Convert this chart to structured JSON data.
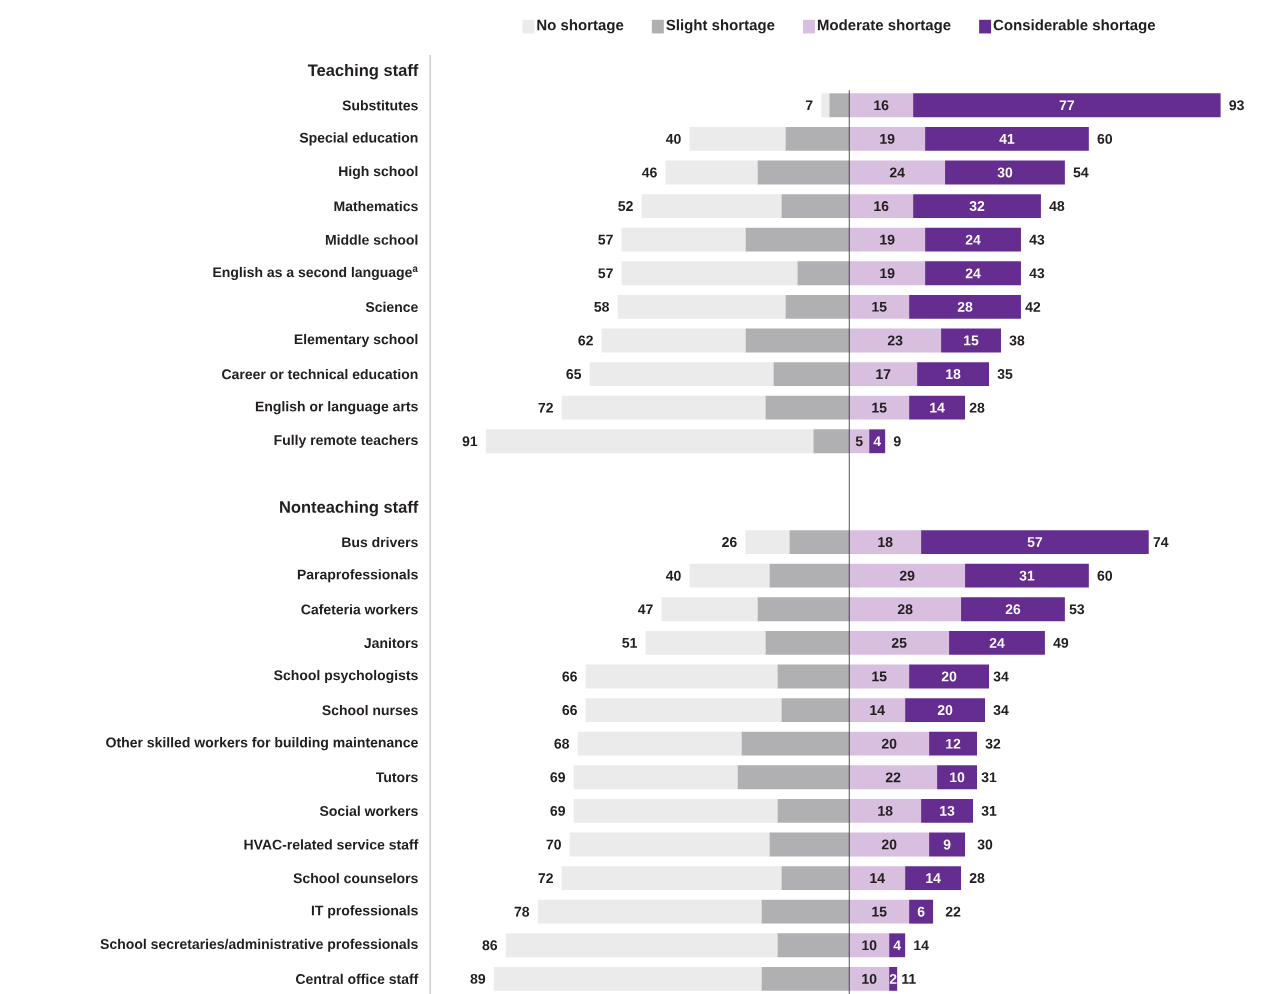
{
  "chart_data": {
    "type": "bar",
    "orientation": "horizontal",
    "stacked": true,
    "legend": "top",
    "tick_labels": "y",
    "categories": [
      "Teaching staff",
      "Substitutes",
      "Special education",
      "High school",
      "Mathematics",
      "Middle school",
      "English as a second language$^{a}$",
      "Science",
      "Elementary school",
      "Career or technical education",
      "English or language arts",
      "Fully remote teachers",
      null,
      "Nonteaching staff",
      "Bus drivers",
      "Paraprofessionals",
      "Cafeteria workers",
      "Janitors",
      "School psychologists",
      "School nurses",
      "Other skilled workers for building maintenance",
      "Tutors",
      "Social workers",
      "HVAC-related service staff",
      "School counselors",
      "IT professionals",
      "School secretaries/administrative professionals",
      "Central office staff"
    ],
    "series": [
      {
        "name": "Slight shortage",
        "color": "#b0b0b3",
        "values": [
          null,
          -5,
          -16,
          -23,
          -17,
          -26,
          -13,
          -16,
          -26,
          -19,
          -21,
          -9,
          null,
          null,
          -15,
          -20,
          -23,
          -21,
          -18,
          -17,
          -27,
          -28,
          -18,
          -20,
          -17,
          -22,
          -18,
          -22
        ]
      },
      {
        "name": "No shortage",
        "color": "#ebebeb",
        "values": [
          null,
          -2,
          -24,
          -23,
          -35,
          -31,
          -44,
          -42,
          -36,
          -46,
          -51,
          -82,
          null,
          null,
          -11,
          -20,
          -24,
          -30,
          -48,
          -49,
          -41,
          -41,
          -51,
          -50,
          -55,
          -56,
          -68,
          -67
        ]
      },
      {
        "name": "Moderate shortage",
        "color": "#d8bfdf",
        "values": [
          null,
          16,
          19,
          24,
          16,
          19,
          19,
          15,
          23,
          17,
          15,
          5,
          null,
          null,
          18,
          29,
          28,
          25,
          15,
          14,
          20,
          22,
          18,
          20,
          14,
          15,
          10,
          10
        ],
        "value_labels": [
          null,
          "16",
          "19",
          "24",
          "16",
          "19",
          "19",
          "15",
          "23",
          "17",
          "15",
          "5",
          null,
          null,
          "18",
          "29",
          "28",
          "25",
          "15",
          "14",
          "20",
          "22",
          "18",
          "20",
          "14",
          "15",
          "10",
          "10"
        ]
      },
      {
        "name": "Considerable shortage",
        "color": "#662d91",
        "values": [
          null,
          77,
          41,
          30,
          32,
          24,
          24,
          28,
          15,
          18,
          14,
          4,
          null,
          null,
          57,
          31,
          26,
          24,
          20,
          20,
          12,
          10,
          13,
          9,
          14,
          6,
          4,
          2
        ],
        "value_labels": [
          null,
          "77",
          "41",
          "30",
          "32",
          "24",
          "24",
          "28",
          "15",
          "18",
          "14",
          "4",
          null,
          null,
          "57",
          "31",
          "26",
          "24",
          "20",
          "20",
          "12",
          "10",
          "13",
          "9",
          "14",
          "6",
          "4",
          "2"
        ]
      }
    ],
    "annotations": [
      {
        "text": "7",
        "x": -7,
        "y": "Substitutes"
      },
      {
        "text": "40",
        "x": -40,
        "y": "Special education"
      },
      {
        "text": "46",
        "x": -46,
        "y": "High school"
      },
      {
        "text": "52",
        "x": -52,
        "y": "Mathematics"
      },
      {
        "text": "57",
        "x": -57,
        "y": "Middle school"
      },
      {
        "text": "57",
        "x": -57,
        "y": "English as a second language$^{a}$"
      },
      {
        "text": "58",
        "x": -58,
        "y": "Science"
      },
      {
        "text": "62",
        "x": -62,
        "y": "Elementary school"
      },
      {
        "text": "65",
        "x": -65,
        "y": "Career or technical education"
      },
      {
        "text": "72",
        "x": -72,
        "y": "English or language arts"
      },
      {
        "text": "91",
        "x": -91,
        "y": "Fully remote teachers"
      },
      {
        "text": "26",
        "x": -26,
        "y": "Bus drivers"
      },
      {
        "text": "40",
        "x": -40,
        "y": "Paraprofessionals"
      },
      {
        "text": "47",
        "x": -47,
        "y": "Cafeteria workers"
      },
      {
        "text": "51",
        "x": -51,
        "y": "Janitors"
      },
      {
        "text": "66",
        "x": -66,
        "y": "School psychologists"
      },
      {
        "text": "66",
        "x": -66,
        "y": "School nurses"
      },
      {
        "text": "68",
        "x": -68,
        "y": "Other skilled workers for building maintenance"
      },
      {
        "text": "69",
        "x": -69,
        "y": "Tutors"
      },
      {
        "text": "69",
        "x": -69,
        "y": "Social workers"
      },
      {
        "text": "70",
        "x": -70,
        "y": "HVAC-related service staff"
      },
      {
        "text": "72",
        "x": -72,
        "y": "School counselors"
      },
      {
        "text": "78",
        "x": -78,
        "y": "IT professionals"
      },
      {
        "text": "86",
        "x": -86,
        "y": "School secretaries/administrative professionals"
      },
      {
        "text": "89",
        "x": -89,
        "y": "Central office staff"
      },
      {
        "text": "93",
        "x": 93,
        "y": "Substitutes"
      },
      {
        "text": "60",
        "x": 60,
        "y": "Special education"
      },
      {
        "text": "54",
        "x": 54,
        "y": "High school"
      },
      {
        "text": "48",
        "x": 48,
        "y": "Mathematics"
      },
      {
        "text": "43",
        "x": 43,
        "y": "Middle school"
      },
      {
        "text": "43",
        "x": 43,
        "y": "English as a second language$^{a}$"
      },
      {
        "text": "42",
        "x": 42,
        "y": "Science"
      },
      {
        "text": "38",
        "x": 38,
        "y": "Elementary school"
      },
      {
        "text": "35",
        "x": 35,
        "y": "Career or technical education"
      },
      {
        "text": "28",
        "x": 28,
        "y": "English or language arts"
      },
      {
        "text": "9",
        "x": 9,
        "y": "Fully remote teachers"
      },
      {
        "text": "74",
        "x": 74,
        "y": "Bus drivers"
      },
      {
        "text": "60",
        "x": 60,
        "y": "Paraprofessionals"
      },
      {
        "text": "53",
        "x": 53,
        "y": "Cafeteria workers"
      },
      {
        "text": "49",
        "x": 49,
        "y": "Janitors"
      },
      {
        "text": "34",
        "x": 34,
        "y": "School psychologists"
      },
      {
        "text": "34",
        "x": 34,
        "y": "School nurses"
      },
      {
        "text": "32",
        "x": 32,
        "y": "Other skilled workers for building maintenance"
      },
      {
        "text": "31",
        "x": 31,
        "y": "Tutors"
      },
      {
        "text": "31",
        "x": 31,
        "y": "Social workers"
      },
      {
        "text": "30",
        "x": 30,
        "y": "HVAC-related service staff"
      },
      {
        "text": "28",
        "x": 28,
        "y": "School counselors"
      },
      {
        "text": "22",
        "x": 22,
        "y": "IT professionals"
      },
      {
        "text": "14",
        "x": 14,
        "y": "School secretaries/administrative professionals"
      },
      {
        "text": "11",
        "x": 11,
        "y": "Central office staff"
      }
    ]
  }
}
